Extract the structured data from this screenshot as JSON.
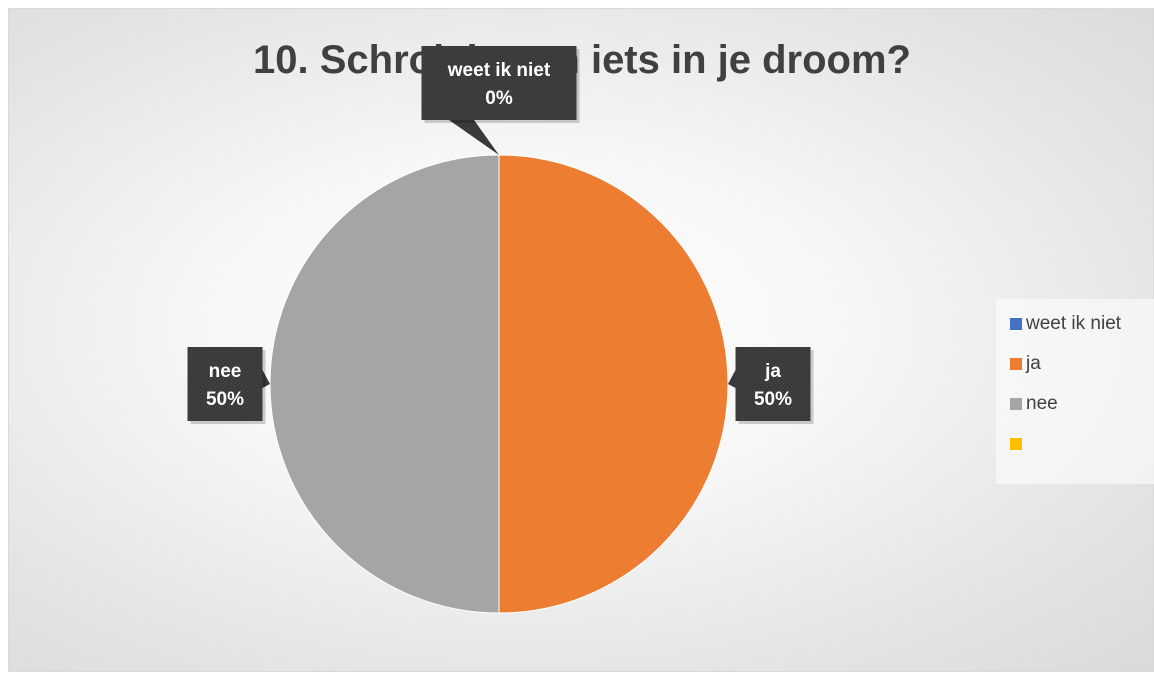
{
  "chart_data": {
    "type": "pie",
    "title": "10. Schrok je van iets in je droom?",
    "slices": [
      {
        "label": "weet ik niet",
        "value": 0,
        "percent_label": "0%",
        "color": "#4472C4"
      },
      {
        "label": "ja",
        "value": 50,
        "percent_label": "50%",
        "color": "#ED7D31"
      },
      {
        "label": "nee",
        "value": 50,
        "percent_label": "50%",
        "color": "#A5A5A5"
      },
      {
        "label": "",
        "value": 0,
        "percent_label": "",
        "color": "#FFC000"
      }
    ],
    "legend_position": "right",
    "data_label_style": "dark callout",
    "callout_color": "#404040"
  }
}
